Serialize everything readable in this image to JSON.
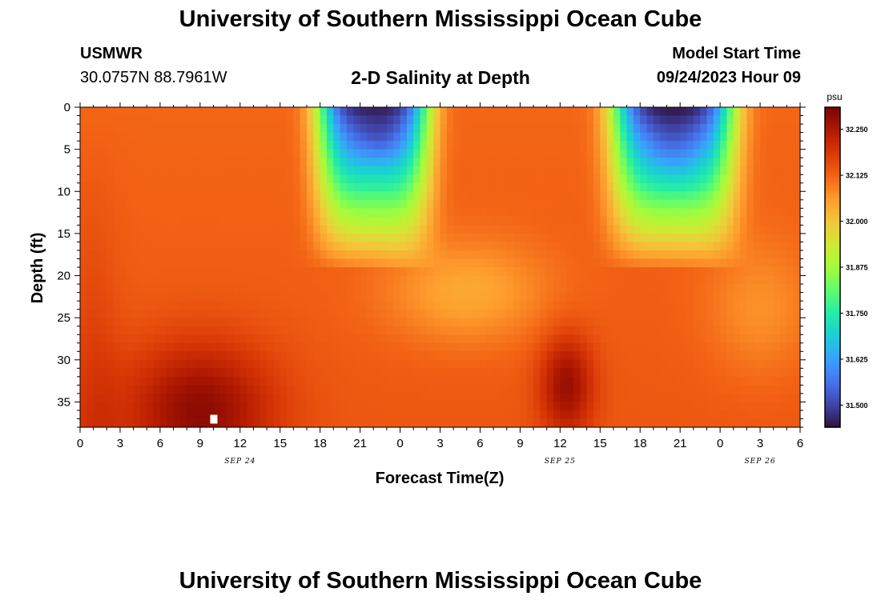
{
  "header": {
    "title": "University of Southern Mississippi Ocean Cube",
    "station": "USMWR",
    "coords": "30.0757N  88.7961W",
    "plot_title": "2-D Salinity at Depth",
    "model_label": "Model Start Time",
    "model_time": "09/24/2023 Hour 09",
    "footer_title": "University of Southern Mississippi Ocean Cube"
  },
  "chart_data": {
    "type": "heatmap",
    "title": "2-D Salinity at Depth",
    "xlabel": "Forecast Time(Z)",
    "ylabel": "Depth (ft)",
    "xlim": [
      0,
      54
    ],
    "ylim": [
      0,
      38
    ],
    "x_ticks": [
      "0",
      "3",
      "6",
      "9",
      "12",
      "15",
      "18",
      "21",
      "0",
      "3",
      "6",
      "9",
      "12",
      "15",
      "18",
      "21",
      "0",
      "3",
      "6"
    ],
    "date_labels": [
      {
        "label": "SEP 24",
        "x": 12
      },
      {
        "label": "SEP 25",
        "x": 36
      },
      {
        "label": "SEP 26",
        "x": 51
      }
    ],
    "y_ticks": [
      "0",
      "5",
      "10",
      "15",
      "20",
      "25",
      "30",
      "35"
    ],
    "colorbar": {
      "unit": "psu",
      "min": 31.44,
      "max": 32.31,
      "ticks": [
        "32.250",
        "32.125",
        "32.000",
        "31.875",
        "31.750",
        "31.625",
        "31.500"
      ],
      "tick_values": [
        32.25,
        32.125,
        32.0,
        31.875,
        31.75,
        31.625,
        31.5
      ]
    },
    "colormap": [
      "#30123b",
      "#4145ab",
      "#4675ed",
      "#39a2fc",
      "#1bcfd4",
      "#24eca6",
      "#61fc6c",
      "#a4fc3b",
      "#d1e834",
      "#f3c63a",
      "#fe9b2d",
      "#f36315",
      "#d93806",
      "#b11901",
      "#7a0403"
    ],
    "fields": {
      "background": 32.12,
      "surface_low_events": [
        {
          "center_hour": 22,
          "min_salinity": 31.46
        },
        {
          "center_hour": 44.5,
          "min_salinity": 31.46
        }
      ],
      "deep_high_events": [
        {
          "center_hour": 9,
          "max_salinity": 32.3
        },
        {
          "center_hour": 36.5,
          "max_salinity": 32.29
        }
      ]
    },
    "marker": {
      "hour": 10,
      "depth": 37
    }
  }
}
